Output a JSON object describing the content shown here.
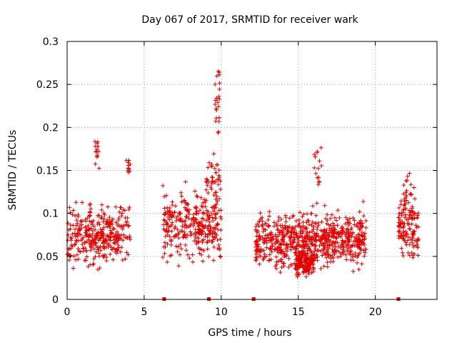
{
  "chart_data": {
    "type": "scatter",
    "title": "Day 067 of 2017, SRMTID for receiver wark",
    "xlabel": "GPS time / hours",
    "ylabel": "SRMTID / TECUs",
    "xlim": [
      0,
      24
    ],
    "ylim": [
      0,
      0.3
    ],
    "xticks": [
      0,
      5,
      10,
      15,
      20
    ],
    "xtick_labels": [
      "0",
      "5",
      "10",
      "15",
      "20"
    ],
    "yticks": [
      0,
      0.05,
      0.1,
      0.15,
      0.2,
      0.25,
      0.3
    ],
    "ytick_labels": [
      "0",
      "0.05",
      "0.1",
      "0.15",
      "0.2",
      "0.25",
      "0.3"
    ],
    "grid": true,
    "series_color": "#e00000",
    "gap_markers_x": [
      6.3,
      9.2,
      12.1,
      21.5
    ],
    "clusters": [
      {
        "x_start": 0.0,
        "x_end": 4.1,
        "y_center": 0.075,
        "y_spread": 0.025,
        "count": 340
      },
      {
        "x_start": 1.8,
        "x_end": 2.1,
        "y_center": 0.175,
        "y_spread": 0.015,
        "count": 14
      },
      {
        "x_start": 3.8,
        "x_end": 4.1,
        "y_center": 0.155,
        "y_spread": 0.015,
        "count": 10
      },
      {
        "x_start": 6.2,
        "x_end": 10.0,
        "y_center": 0.085,
        "y_spread": 0.03,
        "count": 320
      },
      {
        "x_start": 9.0,
        "x_end": 10.0,
        "y_center": 0.14,
        "y_spread": 0.025,
        "count": 40
      },
      {
        "x_start": 9.6,
        "x_end": 9.9,
        "y_center": 0.24,
        "y_spread": 0.03,
        "count": 22
      },
      {
        "x_start": 12.2,
        "x_end": 19.4,
        "y_center": 0.07,
        "y_spread": 0.025,
        "count": 720
      },
      {
        "x_start": 14.8,
        "x_end": 16.0,
        "y_center": 0.042,
        "y_spread": 0.012,
        "count": 140
      },
      {
        "x_start": 16.0,
        "x_end": 16.5,
        "y_center": 0.15,
        "y_spread": 0.02,
        "count": 16
      },
      {
        "x_start": 21.5,
        "x_end": 22.8,
        "y_center": 0.085,
        "y_spread": 0.028,
        "count": 130
      },
      {
        "x_start": 21.8,
        "x_end": 22.6,
        "y_center": 0.13,
        "y_spread": 0.015,
        "count": 14
      }
    ]
  }
}
